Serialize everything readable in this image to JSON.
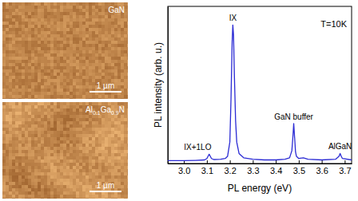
{
  "images": [
    {
      "label": [
        {
          "text": "GaN"
        }
      ],
      "scale_bar": "1 µm"
    },
    {
      "label": [
        {
          "text": "Al"
        },
        {
          "text": "0.1",
          "sub": true
        },
        {
          "text": "Ga"
        },
        {
          "text": "0.9",
          "sub": true
        },
        {
          "text": "N"
        }
      ],
      "scale_bar": "1 µm"
    }
  ],
  "chart_data": {
    "type": "line",
    "x_label": "PL energy (eV)",
    "y_label": "PL intensity (arb. u.)",
    "temperature": "T=10K",
    "color": "#2b2bd4",
    "tick_labels": "x",
    "xlim": [
      2.93,
      3.73
    ],
    "ylim": [
      0,
      1.1
    ],
    "xticks": [
      {
        "value": 3,
        "label": "3.0"
      },
      3.1,
      3.2,
      3.3,
      3.4,
      3.5,
      3.6,
      3.7
    ],
    "x": [
      2.93,
      3.0,
      3.05,
      3.09,
      3.1,
      3.105,
      3.11,
      3.115,
      3.12,
      3.13,
      3.16,
      3.18,
      3.19,
      3.2,
      3.205,
      3.21,
      3.213,
      3.216,
      3.22,
      3.225,
      3.23,
      3.24,
      3.26,
      3.3,
      3.35,
      3.4,
      3.44,
      3.46,
      3.47,
      3.475,
      3.478,
      3.482,
      3.486,
      3.49,
      3.5,
      3.52,
      3.54,
      3.6,
      3.66,
      3.675,
      3.68,
      3.685,
      3.69,
      3.73
    ],
    "values": [
      0.02,
      0.02,
      0.022,
      0.025,
      0.035,
      0.05,
      0.065,
      0.05,
      0.035,
      0.028,
      0.03,
      0.035,
      0.05,
      0.15,
      0.45,
      0.85,
      0.97,
      0.9,
      0.6,
      0.3,
      0.15,
      0.07,
      0.04,
      0.03,
      0.025,
      0.025,
      0.03,
      0.04,
      0.09,
      0.2,
      0.28,
      0.18,
      0.08,
      0.05,
      0.035,
      0.04,
      0.03,
      0.025,
      0.03,
      0.05,
      0.07,
      0.05,
      0.035,
      0.025
    ],
    "annotations": [
      {
        "text": "IX+1LO",
        "x": 3.06
      },
      {
        "text": "IX",
        "x": 3.213
      },
      {
        "text": "GaN buffer",
        "x": 3.478
      },
      {
        "text": "AlGaN",
        "x": 3.68
      }
    ]
  }
}
